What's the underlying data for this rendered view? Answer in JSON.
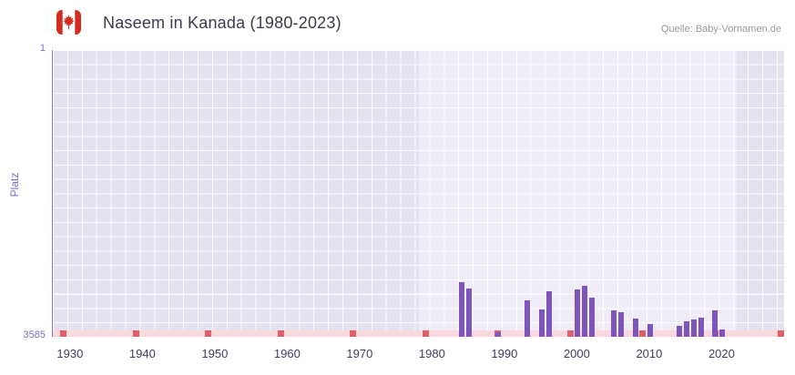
{
  "header": {
    "title": "Naseem in Kanada (1980-2023)",
    "source": "Quelle: Baby-Vornamen.de"
  },
  "chart_data": {
    "type": "bar",
    "title": "Naseem in Kanada (1980-2023)",
    "xlabel": "",
    "ylabel": "Platz",
    "y_axis": {
      "min": 1,
      "max": 3585,
      "inverted": true,
      "top_tick": "1",
      "bottom_tick": "3585"
    },
    "x_axis": {
      "min": 1927.5,
      "max": 2028.5,
      "ticks": [
        1930,
        1940,
        1950,
        1960,
        1970,
        1980,
        1990,
        2000,
        2010,
        2020
      ]
    },
    "highlight_range": {
      "from": 1978,
      "to": 2022
    },
    "decade_marks": [
      1929,
      1939,
      1949,
      1959,
      1969,
      1979,
      1989,
      1999,
      2009,
      2019,
      2028
    ],
    "series": [
      {
        "name": "Platz",
        "points": [
          {
            "year": 1984,
            "rank": 2900
          },
          {
            "year": 1985,
            "rank": 2980
          },
          {
            "year": 1989,
            "rank": 3530
          },
          {
            "year": 1993,
            "rank": 3130
          },
          {
            "year": 1995,
            "rank": 3240
          },
          {
            "year": 1996,
            "rank": 3010
          },
          {
            "year": 2000,
            "rank": 2990
          },
          {
            "year": 2001,
            "rank": 2950
          },
          {
            "year": 2002,
            "rank": 3090
          },
          {
            "year": 2005,
            "rank": 3250
          },
          {
            "year": 2006,
            "rank": 3280
          },
          {
            "year": 2008,
            "rank": 3360
          },
          {
            "year": 2010,
            "rank": 3430
          },
          {
            "year": 2014,
            "rank": 3450
          },
          {
            "year": 2015,
            "rank": 3390
          },
          {
            "year": 2016,
            "rank": 3370
          },
          {
            "year": 2017,
            "rank": 3350
          },
          {
            "year": 2019,
            "rank": 3250
          },
          {
            "year": 2020,
            "rank": 3490
          }
        ]
      }
    ],
    "colors": {
      "bar": "#7d55bd",
      "plot_background": "#e4e1f1",
      "highlight_band": "#efecf8",
      "gridline": "#ffffff",
      "axis_line": "#8a7ccb",
      "y_label": "#7b6ec6",
      "x_label": "#3f3f60",
      "baseline_strip": "#f7d9de",
      "decade_mark": "#e0606a",
      "flag_red": "#d52b1e",
      "title_text": "#3b3b4f",
      "source_text": "#9a9a9a"
    }
  }
}
